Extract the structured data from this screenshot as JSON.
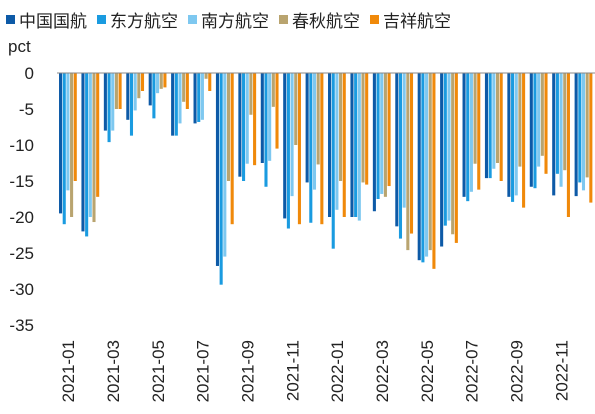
{
  "chart_data": {
    "type": "bar",
    "y_label": "pct",
    "categories": [
      "2021-01",
      null,
      "2021-03",
      null,
      "2021-05",
      null,
      "2021-07",
      null,
      "2021-09",
      null,
      "2021-11",
      null,
      "2022-01",
      null,
      "2022-03",
      null,
      "2022-05",
      null,
      "2022-07",
      null,
      "2022-09",
      null,
      "2022-11",
      null
    ],
    "series": [
      {
        "name": "中国国航",
        "color": "#0d5aa7",
        "values": [
          -19.5,
          -22,
          -8,
          -6.5,
          -4.5,
          -8.7,
          -7,
          -26.8,
          -14.4,
          -12.5,
          -20.2,
          -15.2,
          -20,
          -20,
          -19.2,
          -21.3,
          -26,
          -24.1,
          -17.2,
          -14.6,
          -17.2,
          -15.8,
          -17,
          -17.1
        ]
      },
      {
        "name": "东方航空",
        "color": "#1a9be0",
        "values": [
          -21,
          -22.7,
          -9.6,
          -8.7,
          -6.3,
          -8.7,
          -6.8,
          -29.4,
          -15,
          -15.8,
          -21.6,
          -20.8,
          -24.4,
          -20,
          -17.5,
          -23,
          -26.3,
          -21.2,
          -17.8,
          -14.6,
          -17.9,
          -16,
          -14,
          -15.2
        ]
      },
      {
        "name": "南方航空",
        "color": "#7ec8f0",
        "values": [
          -16.3,
          -20,
          -8,
          -5.2,
          -2.8,
          -7,
          -6.5,
          -25.5,
          -12.6,
          -12.2,
          -17.1,
          -16.2,
          -19,
          -20.5,
          -16.8,
          -18.7,
          -25.5,
          -20.5,
          -16.5,
          -13.3,
          -17,
          -13,
          -15.8,
          -16.3
        ]
      },
      {
        "name": "春秋航空",
        "color": "#b9a46f",
        "values": [
          -20,
          -20.7,
          -5,
          -3.5,
          -2.2,
          -4,
          -0.8,
          -15,
          -5.8,
          -4.7,
          -10,
          -12.7,
          -15,
          -15.2,
          -17.2,
          -24.6,
          -24.6,
          -22.4,
          -12.6,
          -12.5,
          -13,
          -11.5,
          -13.5,
          -14.5
        ]
      },
      {
        "name": "吉祥航空",
        "color": "#f0890a",
        "values": [
          -15,
          -17.2,
          -5,
          -2.5,
          -2,
          -5,
          -2.5,
          -21,
          -12.8,
          -10.5,
          -21,
          -21,
          -20,
          -15.5,
          -15.7,
          -22.3,
          -27.2,
          -23.6,
          -16.2,
          -15,
          -18.7,
          -14,
          -20,
          -18
        ]
      }
    ],
    "ylim": [
      -35,
      0
    ],
    "yticks": [
      0,
      -5,
      -10,
      -15,
      -20,
      -25,
      -30,
      -35
    ]
  }
}
